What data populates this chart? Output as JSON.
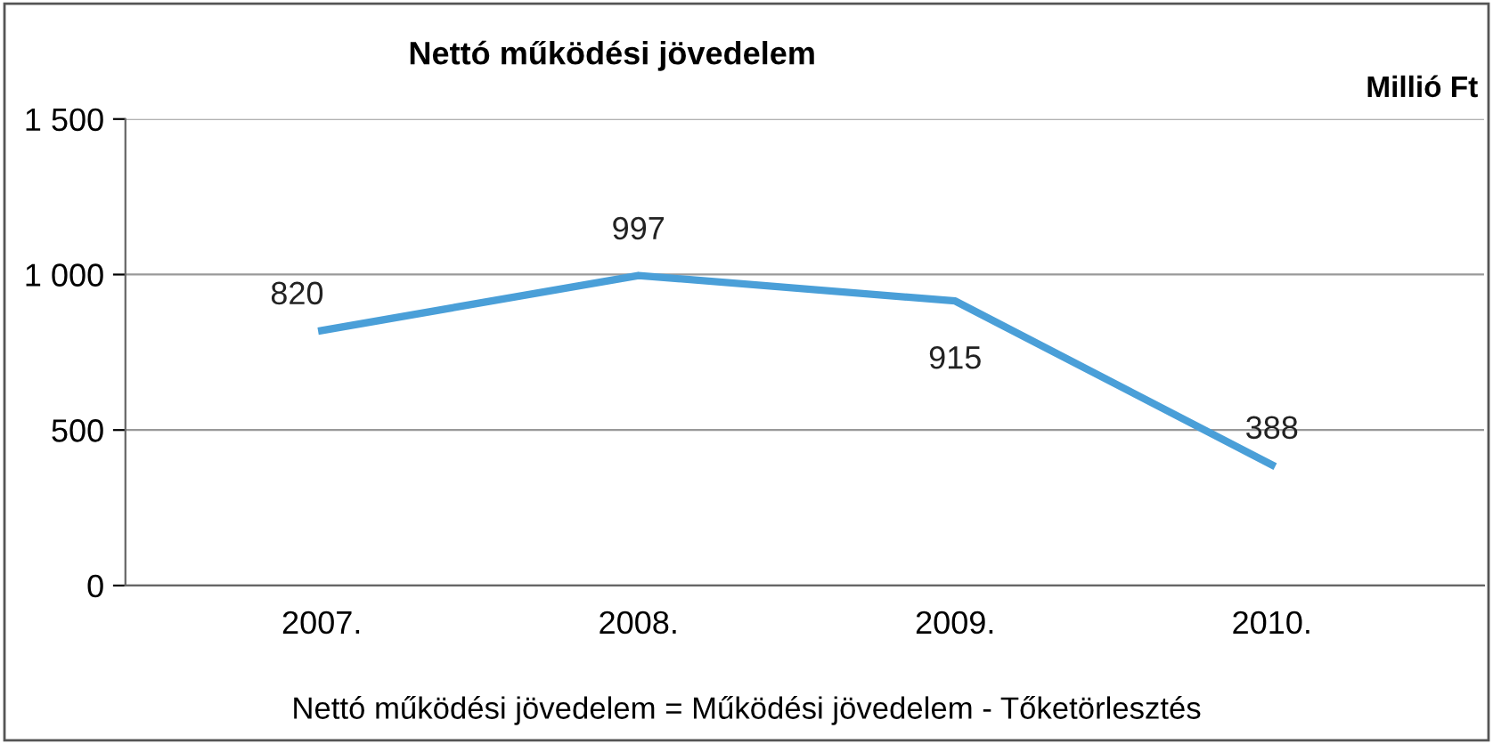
{
  "chart_data": {
    "type": "line",
    "title": "Nettó működési jövedelem",
    "ylabel": "Millió Ft",
    "categories": [
      "2007.",
      "2008.",
      "2009.",
      "2010."
    ],
    "series": [
      {
        "color": "#4a9fd8",
        "values": [
          820,
          997,
          915,
          388
        ]
      }
    ],
    "ylim": [
      0,
      1500
    ],
    "yticks": [
      0,
      {
        "value": 500,
        "label": "500"
      },
      {
        "value": 1000,
        "label": "1 000"
      },
      {
        "value": 1500,
        "label": "1 500"
      }
    ],
    "grid": "y",
    "data_labels": true,
    "marker": "none",
    "line_style": "solid",
    "legend": false,
    "annotations": [
      "Nettó működési jövedelem = Működési jövedelem - Tőketörlesztés"
    ]
  }
}
